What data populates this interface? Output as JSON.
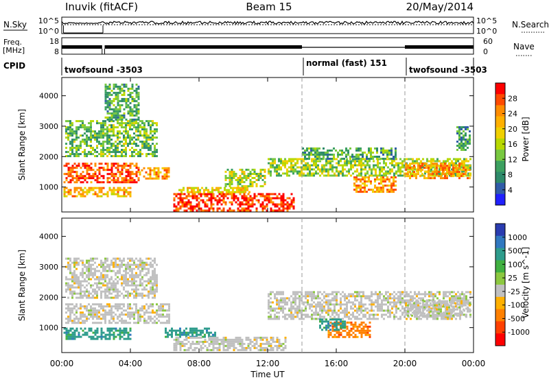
{
  "header": {
    "station": "Inuvik (fitACF)",
    "beam": "Beam 15",
    "date": "20/May/2014"
  },
  "top_panels": {
    "nsky_label": "N.Sky",
    "nsky_ticks": [
      "10^5",
      "10^0"
    ],
    "nsearch_label": "N.Search",
    "nsearch_ticks": [
      "10^5",
      "10^0"
    ],
    "freq_label_1": "Freq.",
    "freq_label_2": "[MHz]",
    "freq_ticks": [
      "18",
      "8"
    ],
    "nave_label": "Nave",
    "nave_ticks": [
      "60",
      "0"
    ],
    "cpid_label": "CPID",
    "cpid_segments": [
      {
        "name": "twofsound -3503",
        "start_hour": 0
      },
      {
        "name": "normal (fast) 151",
        "start_hour": 14
      },
      {
        "name": "twofsound -3503",
        "start_hour": 20
      }
    ]
  },
  "chart_data": [
    {
      "type": "heatmap",
      "title": "",
      "xlabel": "Time UT",
      "ylabel": "Slant Range [km]",
      "xlim_hours": [
        0,
        24
      ],
      "x_ticks": [
        "00:00",
        "04:00",
        "08:00",
        "12:00",
        "16:00",
        "20:00",
        "00:00"
      ],
      "x_tick_hours": [
        0,
        4,
        8,
        12,
        16,
        20,
        24
      ],
      "ylim": [
        180,
        4600
      ],
      "y_ticks": [
        1000,
        2000,
        3000,
        4000
      ],
      "colorbar": {
        "label": "Power [dB]",
        "ticks": [
          "28",
          "24",
          "20",
          "16",
          "12",
          "8",
          "4"
        ],
        "colors": [
          "#ff0000",
          "#ff4a00",
          "#ff8c00",
          "#ffb000",
          "#f0d000",
          "#b8d800",
          "#78c840",
          "#3ca060",
          "#2e8a6a",
          "#305ca8",
          "#2020ff"
        ]
      },
      "regions": [
        {
          "t0": 0.1,
          "t1": 4.5,
          "r0": 1150,
          "r1": 1800,
          "value": 26
        },
        {
          "t0": 4.5,
          "t1": 6.3,
          "r0": 1250,
          "r1": 1650,
          "value": 22
        },
        {
          "t0": 0.1,
          "t1": 4.0,
          "r0": 700,
          "r1": 1000,
          "value": 20
        },
        {
          "t0": 6.5,
          "t1": 13.5,
          "r0": 250,
          "r1": 800,
          "value": 27
        },
        {
          "t0": 6.8,
          "t1": 11.0,
          "r0": 800,
          "r1": 1000,
          "value": 18
        },
        {
          "t0": 9.5,
          "t1": 11.8,
          "r0": 1000,
          "r1": 1600,
          "value": 15
        },
        {
          "t0": 0.2,
          "t1": 5.5,
          "r0": 2000,
          "r1": 3200,
          "value": 12
        },
        {
          "t0": 2.5,
          "t1": 4.5,
          "r0": 3200,
          "r1": 4400,
          "value": 10
        },
        {
          "t0": 12.0,
          "t1": 23.8,
          "r0": 1350,
          "r1": 1950,
          "value": 14
        },
        {
          "t0": 14.0,
          "t1": 19.5,
          "r0": 1950,
          "r1": 2300,
          "value": 10
        },
        {
          "t0": 17.0,
          "t1": 19.5,
          "r0": 850,
          "r1": 1350,
          "value": 22
        },
        {
          "t0": 20.0,
          "t1": 23.8,
          "r0": 1300,
          "r1": 1800,
          "value": 22
        },
        {
          "t0": 23.0,
          "t1": 23.8,
          "r0": 2200,
          "r1": 3000,
          "value": 8
        }
      ]
    },
    {
      "type": "heatmap",
      "title": "",
      "xlabel": "Time UT",
      "ylabel": "Slant Range [km]",
      "xlim_hours": [
        0,
        24
      ],
      "x_ticks": [
        "00:00",
        "04:00",
        "08:00",
        "12:00",
        "16:00",
        "20:00",
        "00:00"
      ],
      "x_tick_hours": [
        0,
        4,
        8,
        12,
        16,
        20,
        24
      ],
      "ylim": [
        180,
        4600
      ],
      "y_ticks": [
        1000,
        2000,
        3000,
        4000
      ],
      "colorbar": {
        "label": "Velocity [m s^-1]",
        "ticks": [
          "1000",
          "500",
          "100",
          "25",
          "-25",
          "-100",
          "-500",
          "-1000"
        ],
        "colors": [
          "#2a3cb0",
          "#3078c0",
          "#2e9c8c",
          "#40b040",
          "#8cc840",
          "#c0c0c0",
          "#ffb000",
          "#ff8000",
          "#ff4000",
          "#ff0000"
        ]
      },
      "regions": [
        {
          "t0": 0.2,
          "t1": 6.2,
          "r0": 1150,
          "r1": 1800,
          "value": 0
        },
        {
          "t0": 0.2,
          "t1": 5.5,
          "r0": 2000,
          "r1": 3300,
          "value": 0
        },
        {
          "t0": 0.1,
          "t1": 4.0,
          "r0": 600,
          "r1": 1000,
          "value": 200
        },
        {
          "t0": 6.0,
          "t1": 9.0,
          "r0": 700,
          "r1": 1000,
          "value": 150
        },
        {
          "t0": 6.5,
          "t1": 13.0,
          "r0": 250,
          "r1": 700,
          "value": 0
        },
        {
          "t0": 12.0,
          "t1": 23.8,
          "r0": 1300,
          "r1": 2200,
          "value": 0
        },
        {
          "t0": 15.5,
          "t1": 18.0,
          "r0": 700,
          "r1": 1200,
          "value": -150
        },
        {
          "t0": 15.0,
          "t1": 16.5,
          "r0": 900,
          "r1": 1300,
          "value": 200
        },
        {
          "t0": 20.0,
          "t1": 23.8,
          "r0": 1400,
          "r1": 1900,
          "value": 0
        }
      ]
    }
  ]
}
